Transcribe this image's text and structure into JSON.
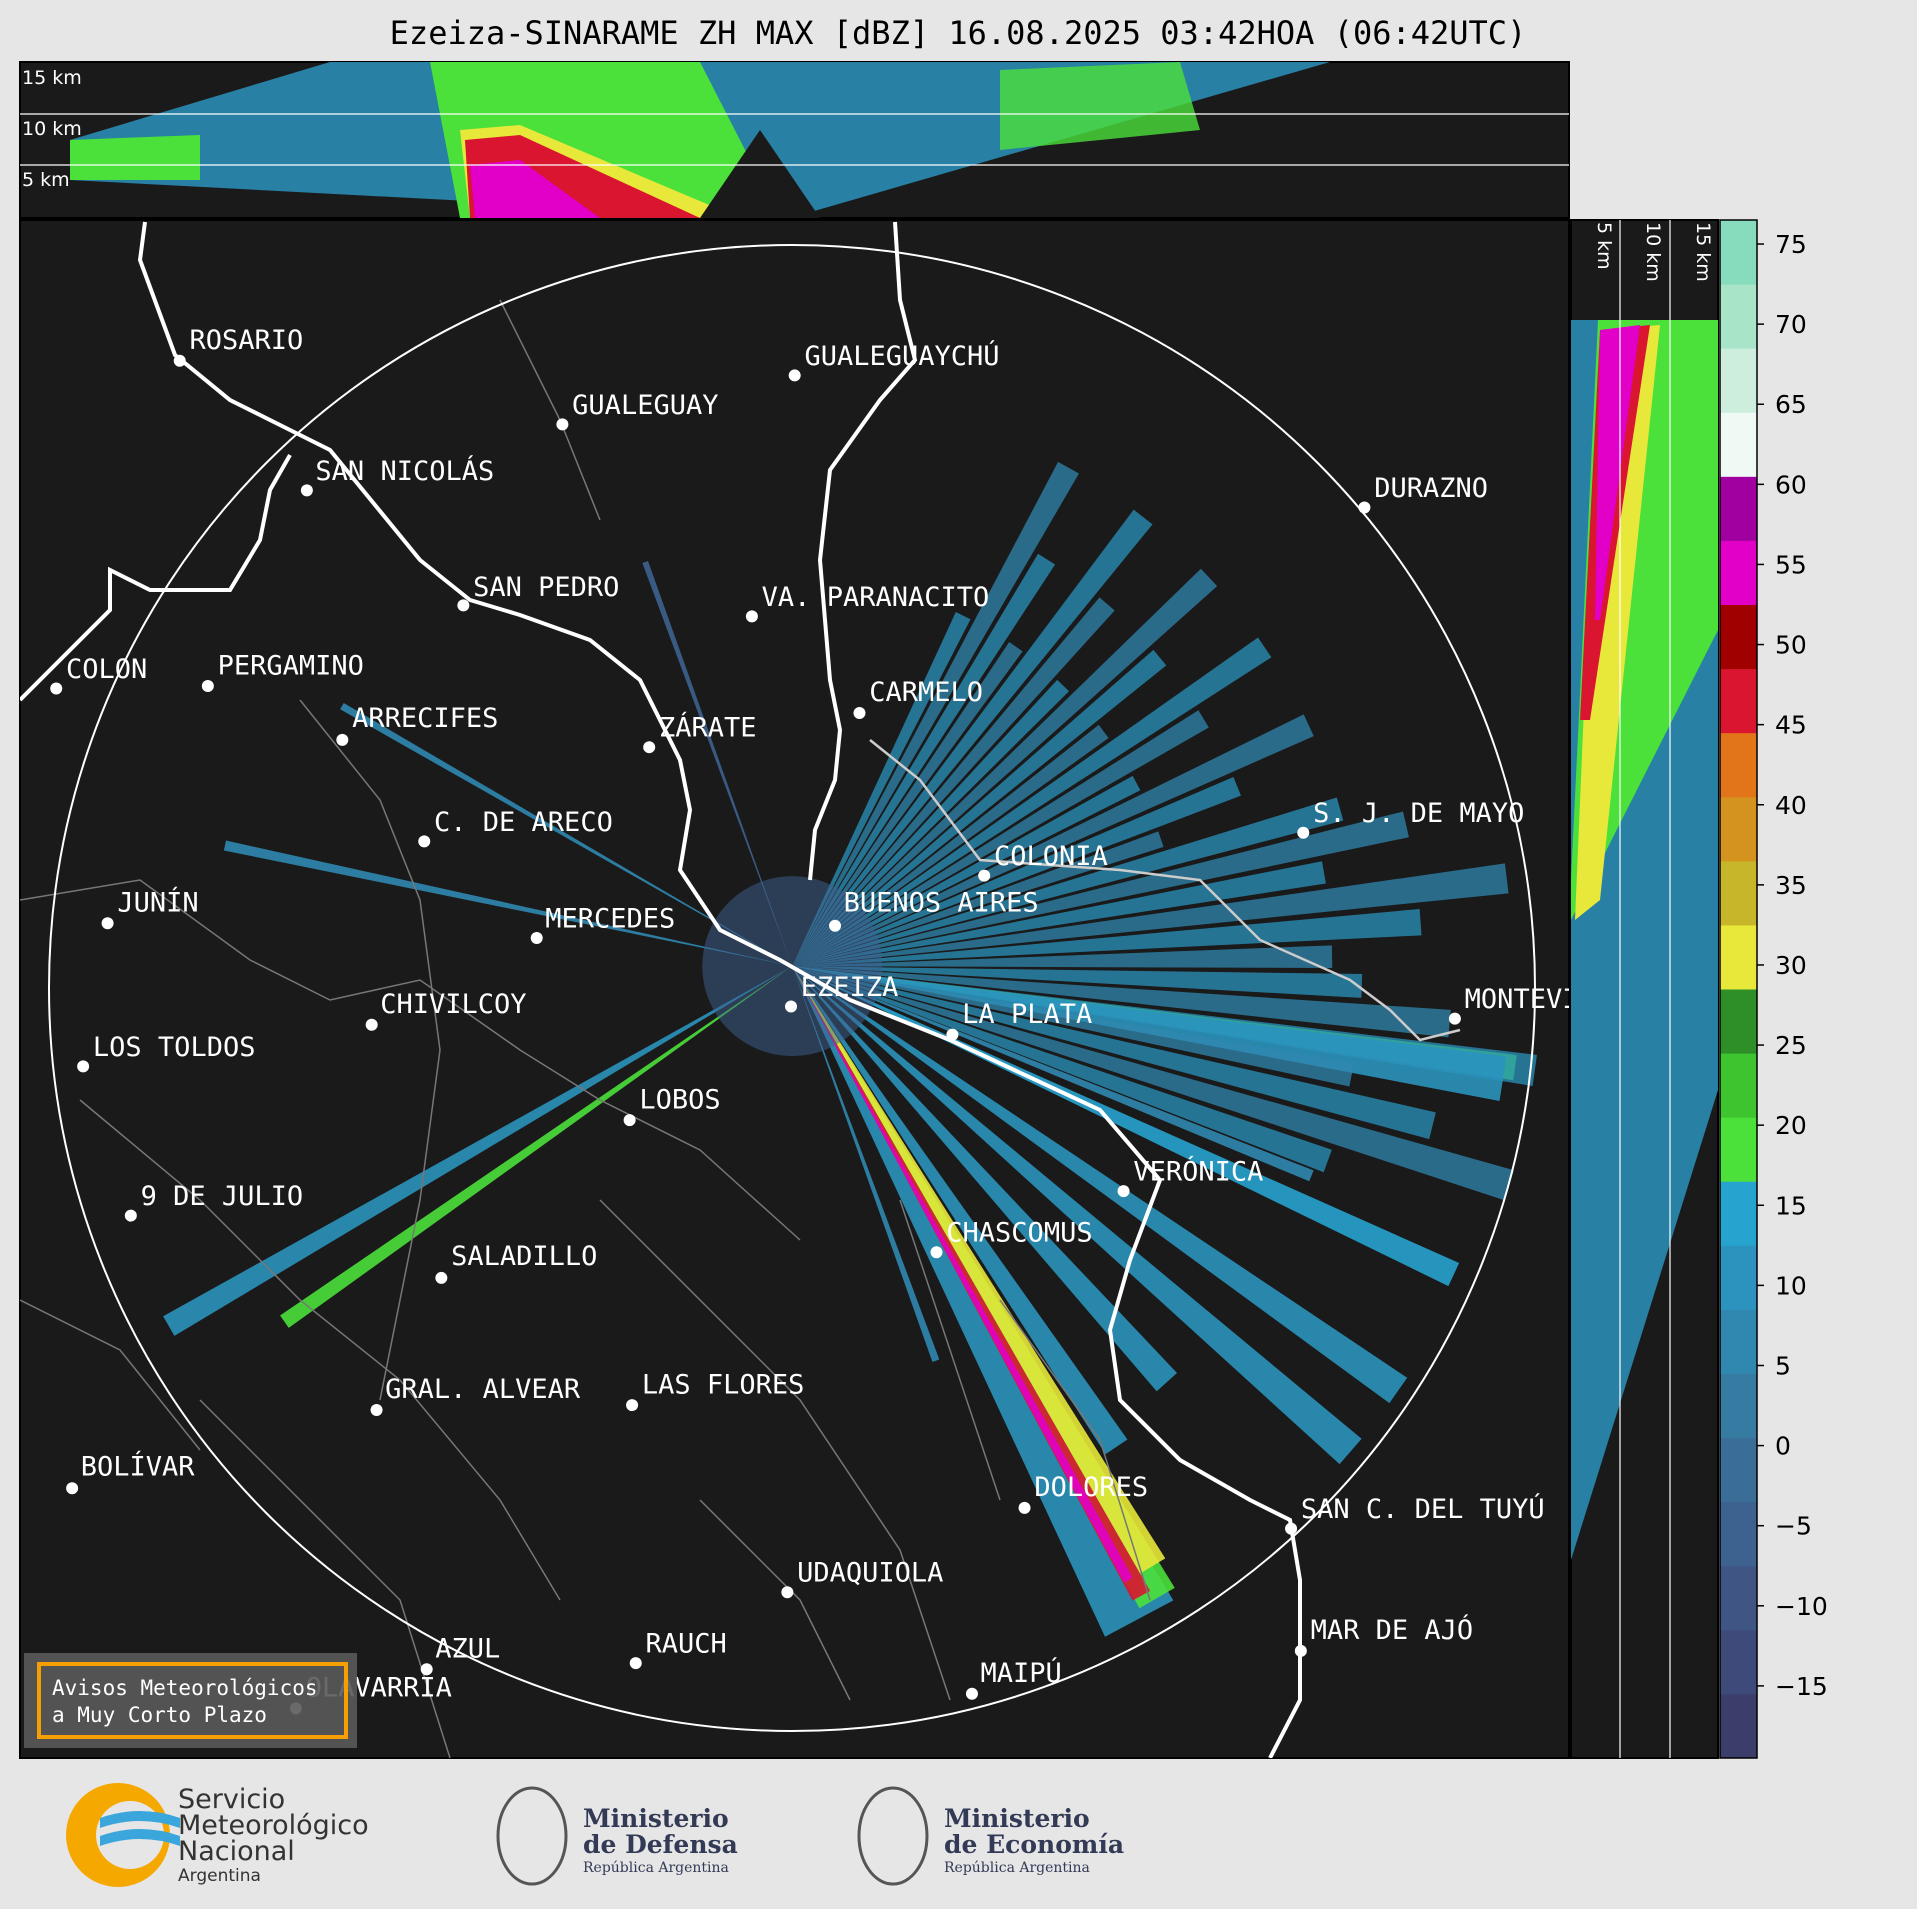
{
  "title": "Ezeiza-SINARAME ZH MAX [dBZ] 16.08.2025 03:42HOA (06:42UTC)",
  "profile_heights": [
    "15 km",
    "10 km",
    "5 km"
  ],
  "cities": [
    "ROSARIO",
    "GUALEGUAYCHÚ",
    "GUALEGUAY",
    "SAN NICOLÁS",
    "DURAZNO",
    "SAN PEDRO",
    "VA. PARANACITO",
    "COLON",
    "PERGAMINO",
    "CARMELO",
    "ARRECIFES",
    "ZÁRATE",
    "C. DE ARECO",
    "S. J. DE MAYO",
    "COLONIA",
    "BUENOS AIRES",
    "JUNÍN",
    "MERCEDES",
    "EZEIZA",
    "CHIVILCOY",
    "MONTEVIDEO",
    "LA PLATA",
    "LOS TOLDOS",
    "LOBOS",
    "VERÓNICA",
    "9 DE JULIO",
    "CHASCOMUS",
    "SALADILLO",
    "GRAL. ALVEAR",
    "LAS FLORES",
    "BOLÍVAR",
    "DOLORES",
    "SAN C. DEL TUYÚ",
    "UDAQUIOLA",
    "MAR DE AJÓ",
    "AZUL",
    "RAUCH",
    "MAIPÚ",
    "OLAVARRÍA"
  ],
  "badge": [
    "Avisos Meteorológicos",
    "a Muy Corto Plazo"
  ],
  "colorbar": {
    "lim": [
      -19.5,
      76.5
    ],
    "ticks": [
      75,
      70,
      65,
      60,
      55,
      50,
      45,
      40,
      35,
      30,
      25,
      20,
      15,
      10,
      5,
      0,
      {
        "value": -5,
        "label": "−5"
      },
      {
        "value": -10,
        "label": "−10"
      },
      {
        "value": -15,
        "label": "−15"
      }
    ],
    "colors": [
      "#3b3d6b",
      "#3e4a7a",
      "#3f5685",
      "#3d628f",
      "#3a6e98",
      "#367ba2",
      "#3087b0",
      "#2b93bd",
      "#27a3cf",
      "#4be03a",
      "#3ec42f",
      "#2e8e27",
      "#e8e83a",
      "#c7b52a",
      "#d4921e",
      "#e2751a",
      "#d9152f",
      "#a00000",
      "#e200c8",
      "#a000a0",
      "#f0faf5",
      "#cdeedd",
      "#a8e4c8",
      "#88dcbe"
    ]
  },
  "logos": {
    "smn": [
      "Servicio",
      "Meteorológico",
      "Nacional",
      "Argentina"
    ],
    "defensa": [
      "Ministerio",
      "de Defensa",
      "República Argentina"
    ],
    "economia": [
      "Ministerio",
      "de Economía",
      "República Argentina"
    ]
  }
}
